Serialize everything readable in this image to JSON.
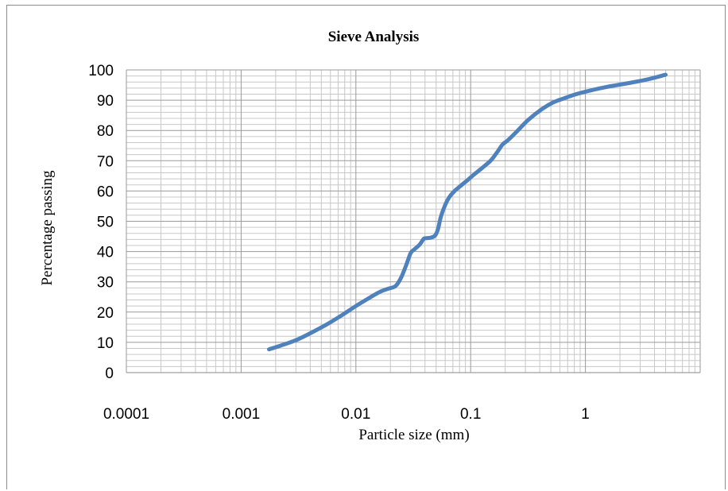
{
  "chart_data": {
    "type": "line",
    "title": "Sieve Analysis",
    "xlabel": "Particle size (mm)",
    "ylabel": "Percentage passing",
    "x_scale": "log",
    "xlim": [
      0.0001,
      10
    ],
    "ylim": [
      0,
      100
    ],
    "x_tick_labels": [
      "0.0001",
      "0.001",
      "0.01",
      "0.1",
      "1"
    ],
    "y_tick_labels": [
      "0",
      "10",
      "20",
      "30",
      "40",
      "50",
      "60",
      "70",
      "80",
      "90",
      "100"
    ],
    "grid": true,
    "legend": "none",
    "line_color": "#4f81bd",
    "series": [
      {
        "x": [
          0.00175,
          0.0022,
          0.003,
          0.004,
          0.0055,
          0.0075,
          0.01,
          0.0135,
          0.016,
          0.019,
          0.0215,
          0.023,
          0.025,
          0.0275,
          0.03,
          0.0325,
          0.036,
          0.039,
          0.041,
          0.045,
          0.049,
          0.052,
          0.055,
          0.06,
          0.065,
          0.072,
          0.08,
          0.092,
          0.105,
          0.125,
          0.15,
          0.17,
          0.19,
          0.21,
          0.25,
          0.32,
          0.42,
          0.52,
          0.65,
          0.8,
          1.0,
          1.5,
          2.5,
          3.5,
          5.0
        ],
        "values": [
          7.7,
          8.9,
          10.7,
          13,
          15.8,
          18.9,
          22,
          25,
          26.6,
          27.7,
          28.3,
          29.3,
          31.7,
          35.6,
          39.5,
          40.8,
          42.3,
          44.2,
          44.4,
          44.6,
          45.3,
          47.5,
          51.5,
          55.4,
          57.9,
          59.9,
          61.4,
          63.3,
          65.2,
          67.5,
          70.1,
          72.8,
          75.4,
          76.7,
          79.5,
          83.6,
          87.1,
          89.2,
          90.6,
          91.8,
          92.8,
          94.3,
          95.8,
          96.9,
          98.4
        ]
      }
    ]
  }
}
